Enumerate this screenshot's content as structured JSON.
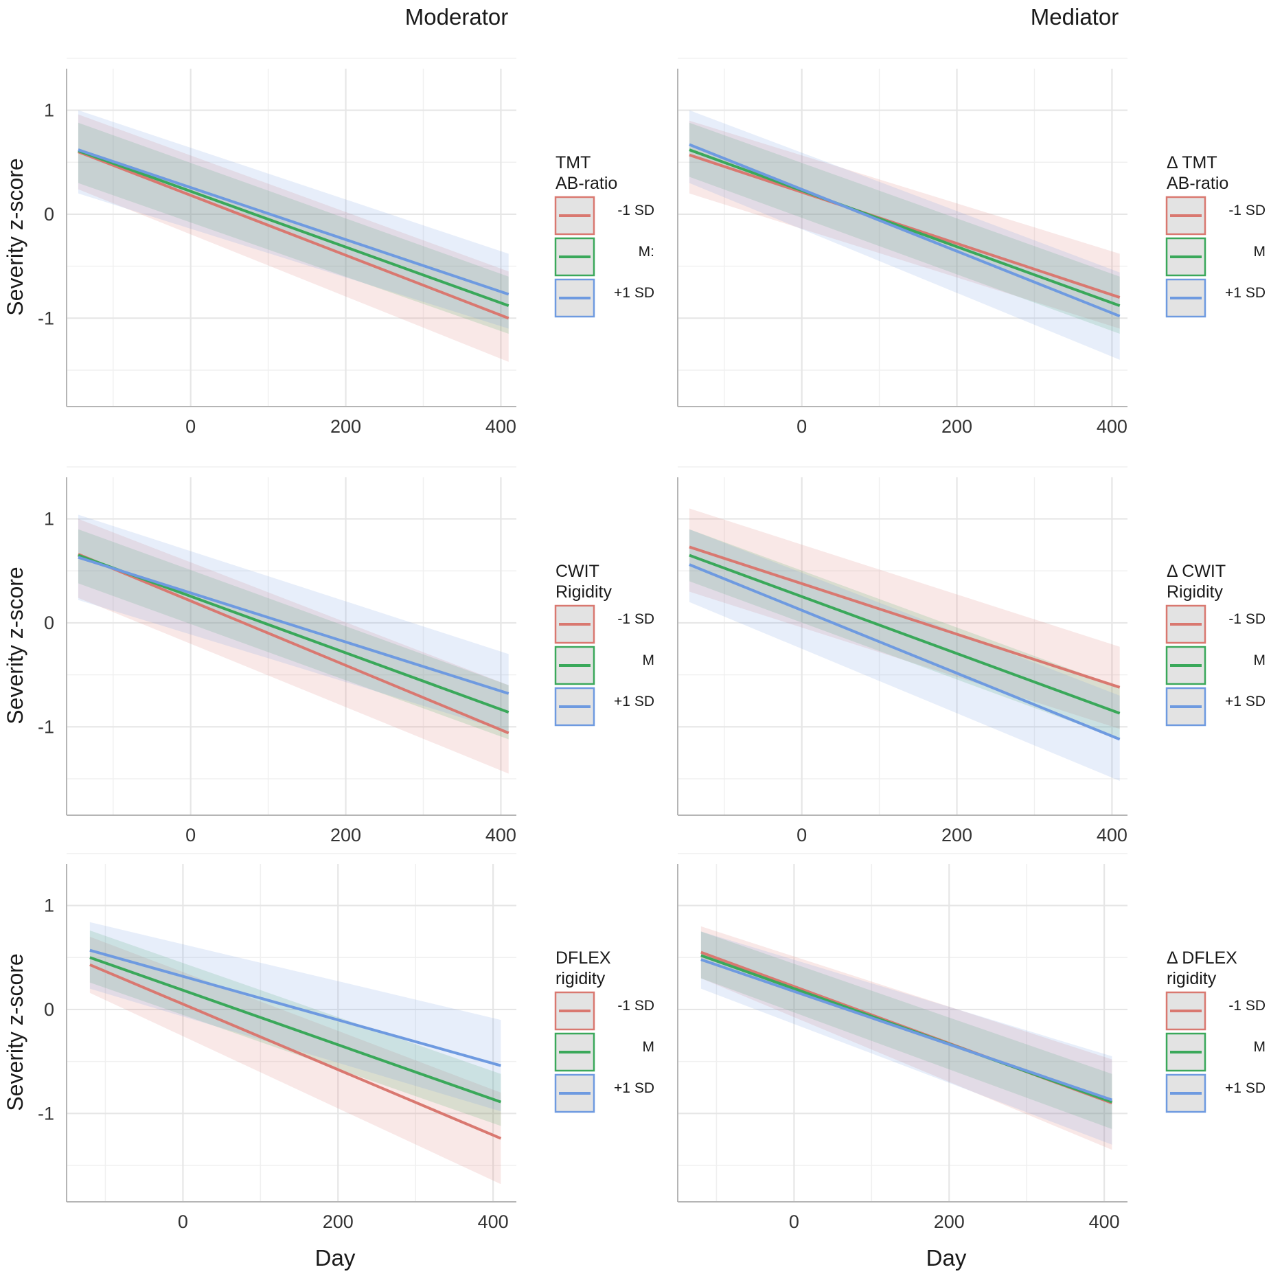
{
  "figure": {
    "column_titles": [
      "Moderator",
      "Mediator"
    ],
    "x_axis_title": "Day",
    "y_axis_title": "Severity z-score",
    "colors": {
      "minus": "#d97870",
      "mean": "#3aa85a",
      "plus": "#6e9ae0",
      "grid": "#e6e6e6",
      "axis": "#b5b5b5"
    }
  },
  "chart_data": [
    {
      "type": "line",
      "id": "tmt-moderator",
      "legend_title": [
        "TMT",
        "AB-ratio"
      ],
      "x": [
        -145,
        410
      ],
      "xlim": [
        -160,
        420
      ],
      "ylim": [
        -1.85,
        1.4
      ],
      "x_ticks": [
        0,
        200,
        400
      ],
      "y_ticks": [
        1,
        0,
        -1
      ],
      "y_tick_labels": [
        "1",
        "0",
        "-1"
      ],
      "series": [
        {
          "name": "-1 SD",
          "key": "minus",
          "y": [
            0.6,
            -1.0
          ],
          "lower": [
            0.24,
            -1.42
          ],
          "upper": [
            0.96,
            -0.55
          ]
        },
        {
          "name": "M:",
          "key": "mean",
          "y": [
            0.61,
            -0.88
          ],
          "lower": [
            0.3,
            -1.15
          ],
          "upper": [
            0.88,
            -0.6
          ]
        },
        {
          "name": "+1 SD",
          "key": "plus",
          "y": [
            0.62,
            -0.77
          ],
          "lower": [
            0.2,
            -1.1
          ],
          "upper": [
            1.0,
            -0.38
          ]
        }
      ]
    },
    {
      "type": "line",
      "id": "tmt-mediator",
      "legend_title": [
        "Δ TMT",
        "AB-ratio"
      ],
      "x": [
        -145,
        410
      ],
      "xlim": [
        -160,
        420
      ],
      "ylim": [
        -1.85,
        1.4
      ],
      "x_ticks": [
        0,
        200,
        400
      ],
      "y_ticks": [
        1,
        0,
        -1
      ],
      "y_tick_labels": [
        "",
        "",
        ""
      ],
      "series": [
        {
          "name": "-1 SD",
          "key": "minus",
          "y": [
            0.57,
            -0.8
          ],
          "lower": [
            0.2,
            -1.1
          ],
          "upper": [
            0.9,
            -0.38
          ]
        },
        {
          "name": "M",
          "key": "mean",
          "y": [
            0.62,
            -0.88
          ],
          "lower": [
            0.36,
            -1.15
          ],
          "upper": [
            0.88,
            -0.6
          ]
        },
        {
          "name": "+1 SD",
          "key": "plus",
          "y": [
            0.67,
            -0.98
          ],
          "lower": [
            0.3,
            -1.4
          ],
          "upper": [
            1.0,
            -0.56
          ]
        }
      ]
    },
    {
      "type": "line",
      "id": "cwit-moderator",
      "legend_title": [
        "CWIT",
        "Rigidity"
      ],
      "x": [
        -145,
        410
      ],
      "xlim": [
        -160,
        420
      ],
      "ylim": [
        -1.85,
        1.4
      ],
      "x_ticks": [
        0,
        200,
        400
      ],
      "y_ticks": [
        1,
        0,
        -1
      ],
      "y_tick_labels": [
        "1",
        "0",
        "-1"
      ],
      "series": [
        {
          "name": "-1 SD",
          "key": "minus",
          "y": [
            0.66,
            -1.06
          ],
          "lower": [
            0.24,
            -1.45
          ],
          "upper": [
            1.0,
            -0.6
          ]
        },
        {
          "name": "M",
          "key": "mean",
          "y": [
            0.65,
            -0.86
          ],
          "lower": [
            0.38,
            -1.12
          ],
          "upper": [
            0.9,
            -0.6
          ]
        },
        {
          "name": "+1 SD",
          "key": "plus",
          "y": [
            0.63,
            -0.68
          ],
          "lower": [
            0.22,
            -1.05
          ],
          "upper": [
            1.04,
            -0.3
          ]
        }
      ]
    },
    {
      "type": "line",
      "id": "cwit-mediator",
      "legend_title": [
        "Δ CWIT",
        "Rigidity"
      ],
      "x": [
        -145,
        410
      ],
      "xlim": [
        -160,
        420
      ],
      "ylim": [
        -1.85,
        1.4
      ],
      "x_ticks": [
        0,
        200,
        400
      ],
      "y_ticks": [
        1,
        0,
        -1
      ],
      "y_tick_labels": [
        "",
        "",
        ""
      ],
      "series": [
        {
          "name": "-1 SD",
          "key": "minus",
          "y": [
            0.73,
            -0.62
          ],
          "lower": [
            0.3,
            -1.02
          ],
          "upper": [
            1.1,
            -0.23
          ]
        },
        {
          "name": "M",
          "key": "mean",
          "y": [
            0.65,
            -0.87
          ],
          "lower": [
            0.4,
            -1.12
          ],
          "upper": [
            0.9,
            -0.62
          ]
        },
        {
          "name": "+1 SD",
          "key": "plus",
          "y": [
            0.56,
            -1.12
          ],
          "lower": [
            0.2,
            -1.52
          ],
          "upper": [
            0.9,
            -0.7
          ]
        }
      ]
    },
    {
      "type": "line",
      "id": "dflex-moderator",
      "legend_title": [
        "DFLEX",
        "rigidity"
      ],
      "x": [
        -120,
        410
      ],
      "xlim": [
        -150,
        430
      ],
      "ylim": [
        -1.85,
        1.4
      ],
      "x_ticks": [
        0,
        200,
        400
      ],
      "y_ticks": [
        1,
        0,
        -1
      ],
      "y_tick_labels": [
        "1",
        "0",
        "-1"
      ],
      "series": [
        {
          "name": "-1 SD",
          "key": "minus",
          "y": [
            0.43,
            -1.24
          ],
          "lower": [
            0.16,
            -1.68
          ],
          "upper": [
            0.7,
            -0.8
          ]
        },
        {
          "name": "M",
          "key": "mean",
          "y": [
            0.5,
            -0.89
          ],
          "lower": [
            0.26,
            -1.12
          ],
          "upper": [
            0.76,
            -0.62
          ]
        },
        {
          "name": "+1 SD",
          "key": "plus",
          "y": [
            0.57,
            -0.54
          ],
          "lower": [
            0.2,
            -0.98
          ],
          "upper": [
            0.84,
            -0.1
          ]
        }
      ]
    },
    {
      "type": "line",
      "id": "dflex-mediator",
      "legend_title": [
        "Δ DFLEX",
        "rigidity"
      ],
      "x": [
        -120,
        410
      ],
      "xlim": [
        -150,
        430
      ],
      "ylim": [
        -1.85,
        1.4
      ],
      "x_ticks": [
        0,
        200,
        400
      ],
      "y_ticks": [
        1,
        0,
        -1
      ],
      "y_tick_labels": [
        "",
        "",
        ""
      ],
      "series": [
        {
          "name": "-1 SD",
          "key": "minus",
          "y": [
            0.55,
            -0.9
          ],
          "lower": [
            0.3,
            -1.35
          ],
          "upper": [
            0.8,
            -0.48
          ]
        },
        {
          "name": "M",
          "key": "mean",
          "y": [
            0.52,
            -0.89
          ],
          "lower": [
            0.3,
            -1.15
          ],
          "upper": [
            0.75,
            -0.62
          ]
        },
        {
          "name": "+1 SD",
          "key": "plus",
          "y": [
            0.48,
            -0.87
          ],
          "lower": [
            0.2,
            -1.3
          ],
          "upper": [
            0.75,
            -0.45
          ]
        }
      ]
    }
  ]
}
